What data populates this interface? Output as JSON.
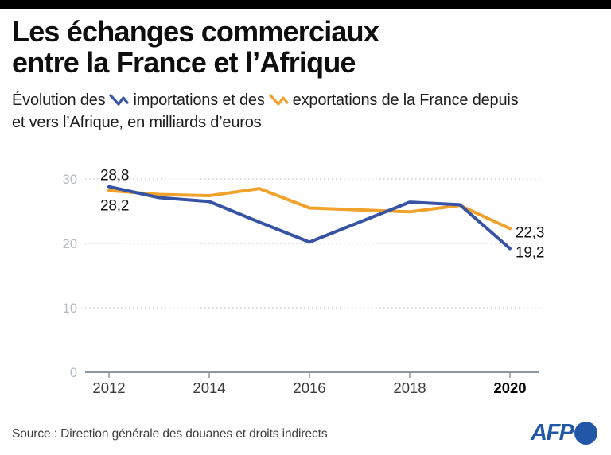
{
  "theme": {
    "topbar": "#000000",
    "accent_import": "#3753a4",
    "accent_export": "#f0a22c",
    "afp_blue": "#2157a6"
  },
  "header": {
    "title_line1": "Les échanges commerciaux",
    "title_line2": "entre la France et l’Afrique"
  },
  "subtitle": {
    "seg1": "Évolution des",
    "seg2": "importations et des",
    "seg3": "exportations de la France depuis",
    "line2": "et vers l’Afrique, en milliards d’euros"
  },
  "chart_data": {
    "type": "line",
    "x": [
      2012,
      2013,
      2014,
      2015,
      2016,
      2017,
      2018,
      2019,
      2020
    ],
    "series": [
      {
        "name": "exportations",
        "color": "#f0a22c",
        "values": [
          28.2,
          27.6,
          27.4,
          28.5,
          25.5,
          25.2,
          24.9,
          25.9,
          22.3
        ]
      },
      {
        "name": "importations",
        "color": "#3753a4",
        "values": [
          28.8,
          27.1,
          26.5,
          23.3,
          20.2,
          23.3,
          26.4,
          26.0,
          19.2
        ]
      }
    ],
    "ylim": [
      0,
      30
    ],
    "yticks": [
      0,
      10,
      20,
      30
    ],
    "xticks": [
      2012,
      2014,
      2016,
      2018,
      2020
    ],
    "xticks_bold": [
      2020
    ],
    "grid": "horizontal-dotted",
    "legend_position": "in-subtitle",
    "annotations": [
      {
        "label": "28,8",
        "series": "importations",
        "position": "above-start"
      },
      {
        "label": "28,2",
        "series": "exportations",
        "position": "below-start"
      },
      {
        "label": "22,3",
        "series": "exportations",
        "position": "right-end"
      },
      {
        "label": "19,2",
        "series": "importations",
        "position": "right-end"
      }
    ]
  },
  "footer": {
    "source": "Source : Direction générale des douanes et droits indirects",
    "logo_text": "AFP"
  }
}
